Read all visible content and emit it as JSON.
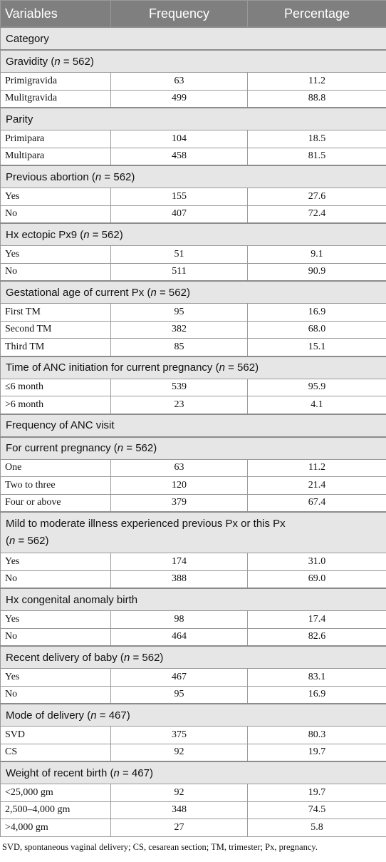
{
  "header": {
    "variables": "Variables",
    "frequency": "Frequency",
    "percentage": "Percentage"
  },
  "rows": [
    {
      "type": "cat",
      "label": "Category"
    },
    {
      "type": "cat",
      "label": "Gravidity",
      "n": "562"
    },
    {
      "type": "row",
      "label": "Primigravida",
      "freq": "63",
      "pct": "11.2"
    },
    {
      "type": "row",
      "label": "Mulitgravida",
      "freq": "499",
      "pct": "88.8"
    },
    {
      "type": "cat",
      "label": "Parity"
    },
    {
      "type": "row",
      "label": "Primipara",
      "freq": "104",
      "pct": "18.5"
    },
    {
      "type": "row",
      "label": "Multipara",
      "freq": "458",
      "pct": "81.5"
    },
    {
      "type": "cat",
      "label": "Previous abortion",
      "n": "562"
    },
    {
      "type": "row",
      "label": "Yes",
      "freq": "155",
      "pct": "27.6"
    },
    {
      "type": "row",
      "label": "No",
      "freq": "407",
      "pct": "72.4"
    },
    {
      "type": "cat",
      "label": "Hx ectopic Px9",
      "n": "562"
    },
    {
      "type": "row",
      "label": "Yes",
      "freq": "51",
      "pct": "9.1"
    },
    {
      "type": "row",
      "label": "No",
      "freq": "511",
      "pct": "90.9"
    },
    {
      "type": "cat",
      "label": "Gestational age of current Px",
      "n": "562"
    },
    {
      "type": "row",
      "label": "First TM",
      "freq": "95",
      "pct": "16.9"
    },
    {
      "type": "row",
      "label": "Second TM",
      "freq": "382",
      "pct": "68.0"
    },
    {
      "type": "row",
      "label": "Third TM",
      "freq": "85",
      "pct": "15.1"
    },
    {
      "type": "cat",
      "label": "Time of ANC initiation for current pregnancy",
      "n": "562"
    },
    {
      "type": "row",
      "label": "≤6 month",
      "freq": "539",
      "pct": "95.9"
    },
    {
      "type": "row",
      "label": ">6 month",
      "freq": "23",
      "pct": "4.1"
    },
    {
      "type": "cat",
      "label": "Frequency of ANC visit"
    },
    {
      "type": "cat",
      "label": "For current pregnancy",
      "n": "562"
    },
    {
      "type": "row",
      "label": "One",
      "freq": "63",
      "pct": "11.2"
    },
    {
      "type": "row",
      "label": "Two to three",
      "freq": "120",
      "pct": "21.4"
    },
    {
      "type": "row",
      "label": "Four or above",
      "freq": "379",
      "pct": "67.4"
    },
    {
      "type": "cat",
      "label": "Mild to moderate illness experienced previous Px or this Px",
      "n": "562",
      "tall": true
    },
    {
      "type": "row",
      "label": "Yes",
      "freq": "174",
      "pct": "31.0"
    },
    {
      "type": "row",
      "label": "No",
      "freq": "388",
      "pct": "69.0"
    },
    {
      "type": "cat",
      "label": "Hx congenital anomaly birth"
    },
    {
      "type": "row",
      "label": "Yes",
      "freq": "98",
      "pct": "17.4"
    },
    {
      "type": "row",
      "label": "No",
      "freq": "464",
      "pct": "82.6"
    },
    {
      "type": "cat",
      "label": "Recent delivery of baby",
      "n": "562"
    },
    {
      "type": "row",
      "label": "Yes",
      "freq": "467",
      "pct": "83.1"
    },
    {
      "type": "row",
      "label": "No",
      "freq": "95",
      "pct": "16.9"
    },
    {
      "type": "cat",
      "label": "Mode of delivery",
      "n": "467"
    },
    {
      "type": "row",
      "label": "SVD",
      "freq": "375",
      "pct": "80.3"
    },
    {
      "type": "row",
      "label": "CS",
      "freq": "92",
      "pct": "19.7"
    },
    {
      "type": "cat",
      "label": "Weight of recent birth",
      "n": "467"
    },
    {
      "type": "row",
      "label": "<25,000 gm",
      "freq": "92",
      "pct": "19.7"
    },
    {
      "type": "row",
      "label": "2,500–4,000 gm",
      "freq": "348",
      "pct": "74.5"
    },
    {
      "type": "row",
      "label": ">4,000 gm",
      "freq": "27",
      "pct": "5.8"
    }
  ],
  "footnote": "SVD, spontaneous vaginal delivery; CS, cesarean section; TM, trimester; Px, pregnancy."
}
